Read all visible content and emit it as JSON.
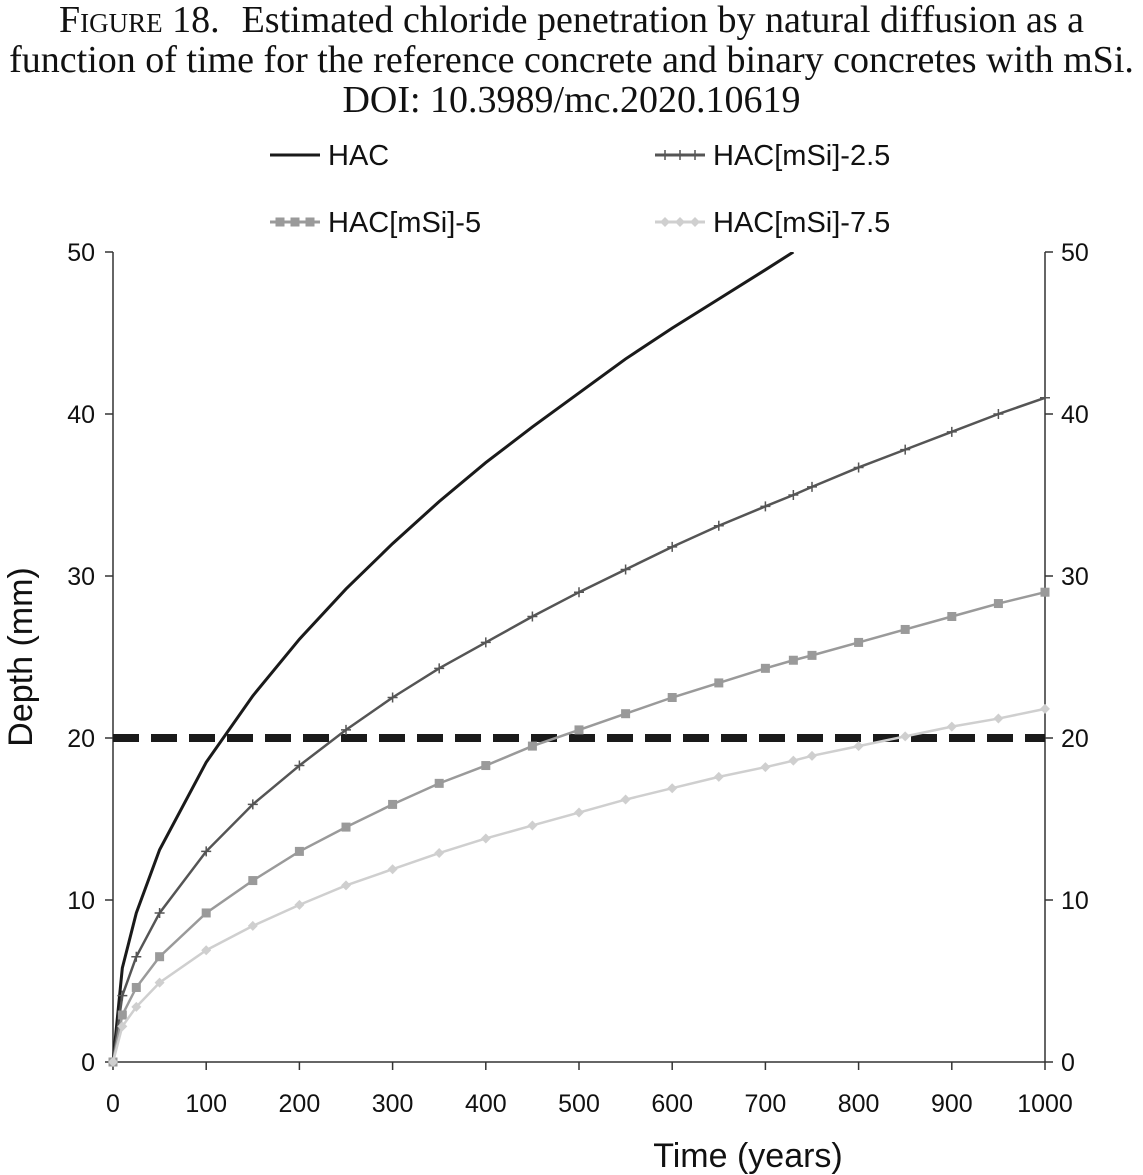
{
  "chart_data": {
    "type": "line",
    "figure_label": "Figure 18.",
    "title": "Estimated chloride penetration by natural diffusion as a function of time for the reference concrete and binary concretes with mSi. DOI: 10.3989/mc.2020.10619",
    "x_label": "Time (years)",
    "y_label": "Depth (mm)",
    "x": [
      0,
      10,
      25,
      50,
      100,
      150,
      200,
      250,
      300,
      350,
      400,
      450,
      500,
      550,
      600,
      650,
      700,
      730,
      750,
      800,
      850,
      900,
      950,
      1000
    ],
    "series": [
      {
        "name": "HAC",
        "color": "#1a1a1a",
        "marker": "none",
        "values": [
          0,
          5.8,
          9.2,
          13.1,
          18.5,
          22.6,
          26.1,
          29.2,
          32.0,
          34.6,
          37.0,
          39.2,
          41.3,
          43.4,
          45.3,
          47.1,
          48.9,
          50.0,
          null,
          null,
          null,
          null,
          null,
          null
        ]
      },
      {
        "name": "HAC[mSi]-2.5",
        "color": "#555555",
        "marker": "plus",
        "values": [
          0,
          4.1,
          6.5,
          9.2,
          13.0,
          15.9,
          18.3,
          20.5,
          22.5,
          24.3,
          25.9,
          27.5,
          29.0,
          30.4,
          31.8,
          33.1,
          34.3,
          35.0,
          35.5,
          36.7,
          37.8,
          38.9,
          40.0,
          41.0
        ]
      },
      {
        "name": "HAC[mSi]-5",
        "color": "#9a9a9a",
        "marker": "square",
        "values": [
          0,
          2.9,
          4.6,
          6.5,
          9.2,
          11.2,
          13.0,
          14.5,
          15.9,
          17.2,
          18.3,
          19.5,
          20.5,
          21.5,
          22.5,
          23.4,
          24.3,
          24.8,
          25.1,
          25.9,
          26.7,
          27.5,
          28.3,
          29.0
        ]
      },
      {
        "name": "HAC[mSi]-7.5",
        "color": "#cfcfcf",
        "marker": "diamond",
        "values": [
          0,
          2.2,
          3.4,
          4.9,
          6.9,
          8.4,
          9.7,
          10.9,
          11.9,
          12.9,
          13.8,
          14.6,
          15.4,
          16.2,
          16.9,
          17.6,
          18.2,
          18.6,
          18.9,
          19.5,
          20.1,
          20.7,
          21.2,
          21.8
        ]
      }
    ],
    "threshold": 20,
    "xlim": [
      0,
      1000
    ],
    "xticks": [
      0,
      100,
      200,
      300,
      400,
      500,
      600,
      700,
      800,
      900,
      1000
    ],
    "ylim": [
      0,
      50
    ],
    "yticks": [
      0,
      10,
      20,
      30,
      40,
      50
    ],
    "y2lim": [
      0,
      50
    ],
    "y2ticks": [
      0,
      10,
      20,
      30,
      40,
      50
    ],
    "legend": "top",
    "grid": false
  }
}
